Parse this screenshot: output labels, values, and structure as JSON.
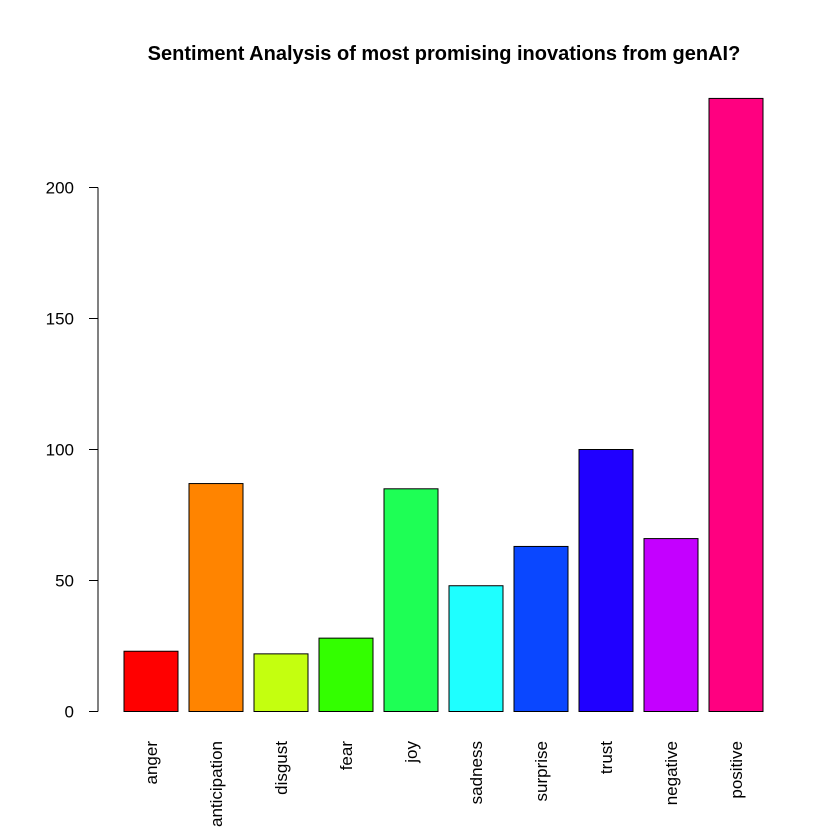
{
  "chart_data": {
    "type": "bar",
    "title": "Sentiment Analysis of most promising inovations from genAI?",
    "xlabel": "",
    "ylabel": "",
    "categories": [
      "anger",
      "anticipation",
      "disgust",
      "fear",
      "joy",
      "sadness",
      "surprise",
      "trust",
      "negative",
      "positive"
    ],
    "values": [
      23,
      87,
      22,
      28,
      85,
      48,
      63,
      100,
      66,
      234
    ],
    "colors": [
      "#FF0000",
      "#FF8400",
      "#C4FF0F",
      "#33FF00",
      "#1EFF55",
      "#1EFFFF",
      "#0A47FF",
      "#2000FF",
      "#C400FF",
      "#FF0080"
    ],
    "yticks": [
      0,
      50,
      100,
      150,
      200
    ],
    "ylim": [
      0,
      234
    ],
    "grid": false,
    "legend": "none"
  }
}
